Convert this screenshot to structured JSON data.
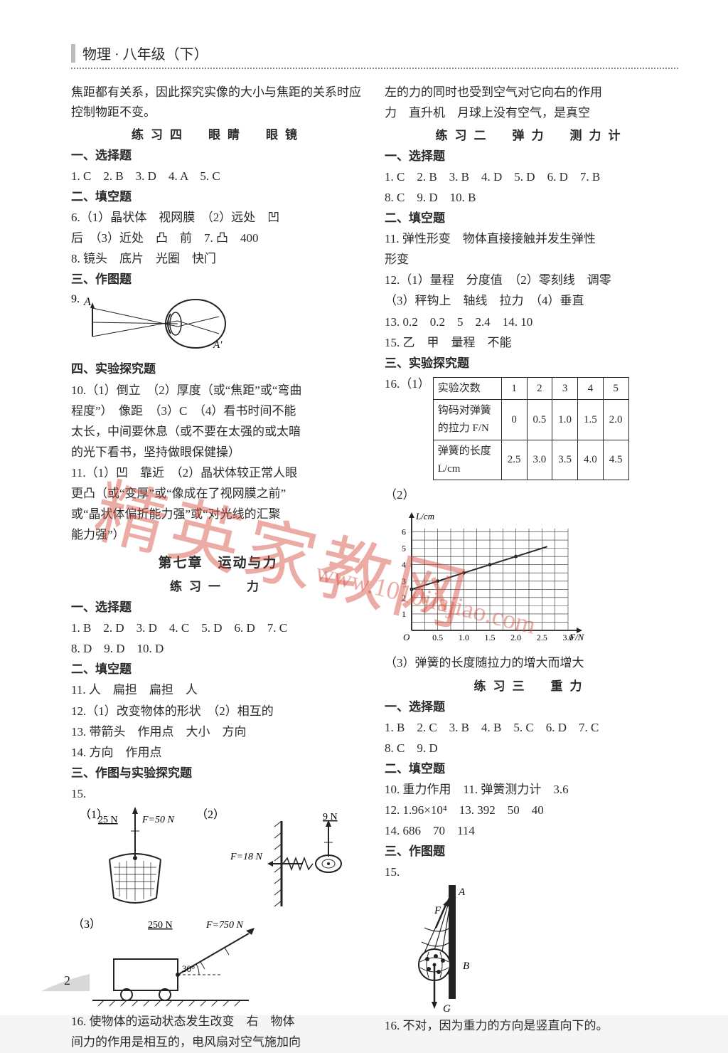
{
  "header": {
    "title": "物理 · 八年级（下）"
  },
  "page_number": "2",
  "watermark": {
    "main": "精英家教网",
    "url": "www.1010jiajiao.com"
  },
  "left": {
    "intro": "焦距都有关系，因此探究实像的大小与焦距的关系时应控制物距不变。",
    "p4_title": "练习四　眼睛　眼镜",
    "s1": "一、选择题",
    "p4_choice": "1. C　2. B　3. D　4. A　5. C",
    "s2": "二、填空题",
    "p4_fill_6": "6.（1）晶状体　视网膜　（2）远处　凹",
    "p4_fill_6b": "后　（3）近处　凸　前　7. 凸　400",
    "p4_fill_8": "8. 镜头　底片　光圈　快门",
    "s3": "三、作图题",
    "q9_label": "9.",
    "fig_eye_A": "A",
    "fig_eye_Ap": "A′",
    "s4": "四、实验探究题",
    "p4_q10a": "10.（1）倒立　（2）厚度（或“焦距”或“弯曲",
    "p4_q10b": "程度”）　像距　（3）C　（4）看书时间不能",
    "p4_q10c": "太长，中间要休息（或不要在太强的或太暗",
    "p4_q10d": "的光下看书，坚持做眼保健操）",
    "p4_q11a": "11.（1）凹　靠近　（2）晶状体较正常人眼",
    "p4_q11b": "更凸（或“变厚”或“像成在了视网膜之前”",
    "p4_q11c": "或“晶状体偏折能力强”或“对光线的汇聚",
    "p4_q11d": "能力强”）",
    "ch7_title": "第七章　运动与力",
    "p1_title": "练习一　力",
    "p1_choice_a": "1. B　2. D　3. D　4. C　5. D　6. D　7. C",
    "p1_choice_b": "8. D　9. D　10. D",
    "p1_fill_11": "11. 人　扁担　扁担　人",
    "p1_fill_12": "12.（1）改变物体的形状　（2）相互的",
    "p1_fill_13": "13. 带箭头　作用点　大小　方向",
    "p1_fill_14": "14. 方向　作用点",
    "s3b": "三、作图与实验探究题",
    "q15_label": "15.",
    "fig15_1_a": "（1）",
    "fig15_25N": "25 N",
    "fig15_50N": "F=50 N",
    "fig15_2_a": "（2）",
    "fig15_18N": "F=18 N",
    "fig15_9N": "9 N",
    "fig15_3_a": "（3）",
    "fig15_250N": "250 N",
    "fig15_750N": "F=750 N",
    "fig15_30": "30°",
    "q16a": "16. 使物体的运动状态发生改变　右　物体",
    "q16b": "间力的作用是相互的，电风扇对空气施加向"
  },
  "right": {
    "intro_a": "左的力的同时也受到空气对它向右的作用",
    "intro_b": "力　直升机　月球上没有空气，是真空",
    "p2_title": "练习二　弹力　测力计",
    "s1": "一、选择题",
    "p2_choice_a": "1. C　2. B　3. B　4. D　5. D　6. D　7. B",
    "p2_choice_b": "8. C　9. D　10. B",
    "s2": "二、填空题",
    "p2_fill_11a": "11. 弹性形变　物体直接接触并发生弹性",
    "p2_fill_11b": "形变",
    "p2_fill_12a": "12.（1）量程　分度值　（2）零刻线　调零",
    "p2_fill_12b": "（3）秤钩上　轴线　拉力　（4）垂直",
    "p2_fill_13": "13. 0.2　0.2　5　2.4　14. 10",
    "p2_fill_15": "15. 乙　甲　量程　不能",
    "s3": "三、实验探究题",
    "q16_label": "16.（1）",
    "table": {
      "headers": [
        "实验次数",
        "1",
        "2",
        "3",
        "4",
        "5"
      ],
      "row1_label": "钩码对弹簧的拉力 F/N",
      "row1": [
        "0",
        "0.5",
        "1.0",
        "1.5",
        "2.0"
      ],
      "row2_label": "弹簧的长度 L/cm",
      "row2": [
        "2.5",
        "3.0",
        "3.5",
        "4.0",
        "4.5"
      ]
    },
    "q16_2": "（2）",
    "chart": {
      "type": "line",
      "xlabel": "F/N",
      "ylabel": "L/cm",
      "xticks": [
        "0.5",
        "1.0",
        "1.5",
        "2.0",
        "2.5",
        "3.0"
      ],
      "yticks": [
        "1",
        "2",
        "3",
        "4",
        "5",
        "6"
      ],
      "xlim": [
        0,
        3.0
      ],
      "ylim": [
        0,
        6.5
      ],
      "grid_color": "#2a2a2a",
      "line_color": "#2a2a2a",
      "background_color": "#ffffff",
      "points_x": [
        0,
        0.5,
        1.0,
        1.5,
        2.0
      ],
      "points_y": [
        2.5,
        3.0,
        3.5,
        4.0,
        4.5
      ],
      "origin_label": "O"
    },
    "q16_3": "（3）弹簧的长度随拉力的增大而增大",
    "p3_title": "练习三　重力",
    "p3_choice_a": "1. B　2. C　3. B　4. B　5. C　6. D　7. C",
    "p3_choice_b": "8. C　9. D",
    "p3_fill_10": "10. 重力作用　11. 弹簧测力计　3.6",
    "p3_fill_12": "12. 1.96×10⁴　13. 392　50　40",
    "p3_fill_14": "14. 686　70　114",
    "s3b": "三、作图题",
    "q15_label": "15.",
    "fig15_A": "A",
    "fig15_F": "F",
    "fig15_B": "B",
    "fig15_G": "G",
    "q16": "16. 不对，因为重力的方向是竖直向下的。"
  }
}
